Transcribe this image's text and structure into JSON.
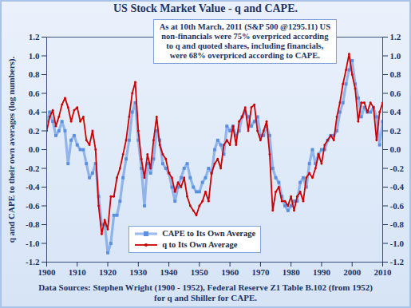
{
  "chart_data": {
    "type": "line",
    "title": "US Stock Market Value - q and CAPE.",
    "annotation": "As at 10th March, 2011 (S&P 500 @1295.11) US non-financials were 75% overpriced according to q and quoted shares, including financials, were 68% overpriced according to CAPE.",
    "caption": "Data Sources: Stephen Wright (1900 - 1952), Federal Reserve Z1 Table B.102 (from 1952) for q and Shiller for CAPE.",
    "ylabel": "q and CAPE to their own averages (log numbers).",
    "x": [
      1900,
      1901,
      1902,
      1903,
      1904,
      1905,
      1906,
      1907,
      1908,
      1909,
      1910,
      1911,
      1912,
      1913,
      1914,
      1915,
      1916,
      1917,
      1918,
      1919,
      1920,
      1921,
      1922,
      1923,
      1924,
      1925,
      1926,
      1927,
      1928,
      1929,
      1930,
      1931,
      1932,
      1933,
      1934,
      1935,
      1936,
      1937,
      1938,
      1939,
      1940,
      1941,
      1942,
      1943,
      1944,
      1945,
      1946,
      1947,
      1948,
      1949,
      1950,
      1951,
      1952,
      1953,
      1954,
      1955,
      1956,
      1957,
      1958,
      1959,
      1960,
      1961,
      1962,
      1963,
      1964,
      1965,
      1966,
      1967,
      1968,
      1969,
      1970,
      1971,
      1972,
      1973,
      1974,
      1975,
      1976,
      1977,
      1978,
      1979,
      1980,
      1981,
      1982,
      1983,
      1984,
      1985,
      1986,
      1987,
      1988,
      1989,
      1990,
      1991,
      1992,
      1993,
      1994,
      1995,
      1996,
      1997,
      1998,
      1999,
      2000,
      2001,
      2002,
      2003,
      2004,
      2005,
      2006,
      2007,
      2008,
      2009,
      2010
    ],
    "series": [
      {
        "name": "CAPE to Its Own Average",
        "color": "#5b8fdf",
        "marker": "square",
        "line_style": "solid",
        "values": [
          0.3,
          0.4,
          0.3,
          0.15,
          0.2,
          0.3,
          0.2,
          -0.15,
          0.1,
          0.15,
          0.05,
          0,
          0,
          -0.15,
          -0.3,
          -0.25,
          -0.15,
          -0.5,
          -0.8,
          -0.8,
          -1.1,
          -1.0,
          -0.7,
          -0.7,
          -0.55,
          -0.3,
          -0.1,
          0.1,
          0.4,
          0.5,
          0.1,
          -0.2,
          -0.6,
          -0.15,
          -0.25,
          -0.1,
          0.2,
          0.1,
          -0.15,
          -0.2,
          -0.25,
          -0.4,
          -0.55,
          -0.4,
          -0.3,
          -0.2,
          -0.15,
          -0.3,
          -0.4,
          -0.45,
          -0.45,
          -0.35,
          -0.3,
          -0.2,
          -0.25,
          0,
          0.1,
          0.05,
          -0.05,
          0.25,
          0.2,
          0.25,
          0.15,
          0.2,
          0.35,
          0.4,
          0.35,
          0.25,
          0.3,
          0.35,
          0.15,
          0.15,
          0.25,
          0.15,
          -0.2,
          -0.3,
          -0.35,
          -0.5,
          -0.6,
          -0.65,
          -0.6,
          -0.55,
          -0.55,
          -0.35,
          -0.3,
          -0.4,
          -0.15,
          0,
          -0.15,
          -0.05,
          0,
          0,
          0.1,
          0.15,
          0.15,
          0.2,
          0.4,
          0.5,
          0.7,
          0.85,
          0.95,
          0.7,
          0.55,
          0.35,
          0.45,
          0.4,
          0.4,
          0.45,
          0.35,
          0.05,
          0.3
        ]
      },
      {
        "name": "q to Its Own Average",
        "color": "#cc0000",
        "marker": "circle",
        "line_style": "solid",
        "values": [
          0.2,
          0.35,
          0.42,
          0.25,
          0.35,
          0.48,
          0.55,
          0.45,
          0.3,
          0.42,
          0.45,
          0.3,
          0.35,
          0.1,
          0.05,
          0.2,
          0,
          -0.6,
          -0.9,
          -0.75,
          -0.85,
          -0.5,
          -0.5,
          -0.3,
          -0.2,
          -0.05,
          0.1,
          0.35,
          0.6,
          0.72,
          0.2,
          -0.1,
          -0.3,
          -0.05,
          -0.2,
          0.1,
          0.35,
          0.05,
          -0.05,
          -0.1,
          -0.25,
          -0.3,
          -0.45,
          -0.35,
          -0.4,
          -0.3,
          -0.5,
          -0.6,
          -0.65,
          -0.7,
          -0.6,
          -0.55,
          -0.45,
          -0.55,
          -0.25,
          -0.15,
          -0.1,
          -0.2,
          0.05,
          0.1,
          0.05,
          0.25,
          0.05,
          0.3,
          0.35,
          0.45,
          0.2,
          0.45,
          0.48,
          0.2,
          0.1,
          0.2,
          0.3,
          -0.05,
          -0.65,
          -0.45,
          -0.4,
          -0.55,
          -0.55,
          -0.6,
          -0.5,
          -0.65,
          -0.5,
          -0.45,
          -0.55,
          -0.3,
          -0.25,
          -0.3,
          -0.2,
          -0.05,
          -0.15,
          0.05,
          0.1,
          0.15,
          0.1,
          0.35,
          0.5,
          0.7,
          0.85,
          1.02,
          0.8,
          0.65,
          0.3,
          0.5,
          0.5,
          0.4,
          0.5,
          0.45,
          0.1,
          0.4,
          0.5
        ]
      }
    ],
    "xlim": [
      1900,
      2010
    ],
    "xticks": [
      1900,
      1910,
      1920,
      1930,
      1940,
      1950,
      1960,
      1970,
      1980,
      1990,
      2000,
      2010
    ],
    "ylim": [
      -1.2,
      1.2
    ],
    "yticks": [
      -1.2,
      {
        "value": -1,
        "label": "-1.0"
      },
      -0.8,
      -0.6,
      -0.4,
      -0.2,
      {
        "value": 0,
        "label": "0.0"
      },
      0.2,
      0.4,
      0.6,
      0.8,
      {
        "value": 1,
        "label": "1.0"
      },
      1.2
    ],
    "y2lim": [
      -1.2,
      1.2
    ],
    "y2ticks": [
      -1.2,
      {
        "value": -1,
        "label": "-1.0"
      },
      -0.8,
      -0.6,
      -0.4,
      -0.2,
      {
        "value": 0,
        "label": "0.0"
      },
      0.2,
      0.4,
      0.6,
      0.8,
      {
        "value": 1,
        "label": "1.0"
      },
      1.2
    ],
    "grid": false,
    "legend": "bottom"
  }
}
